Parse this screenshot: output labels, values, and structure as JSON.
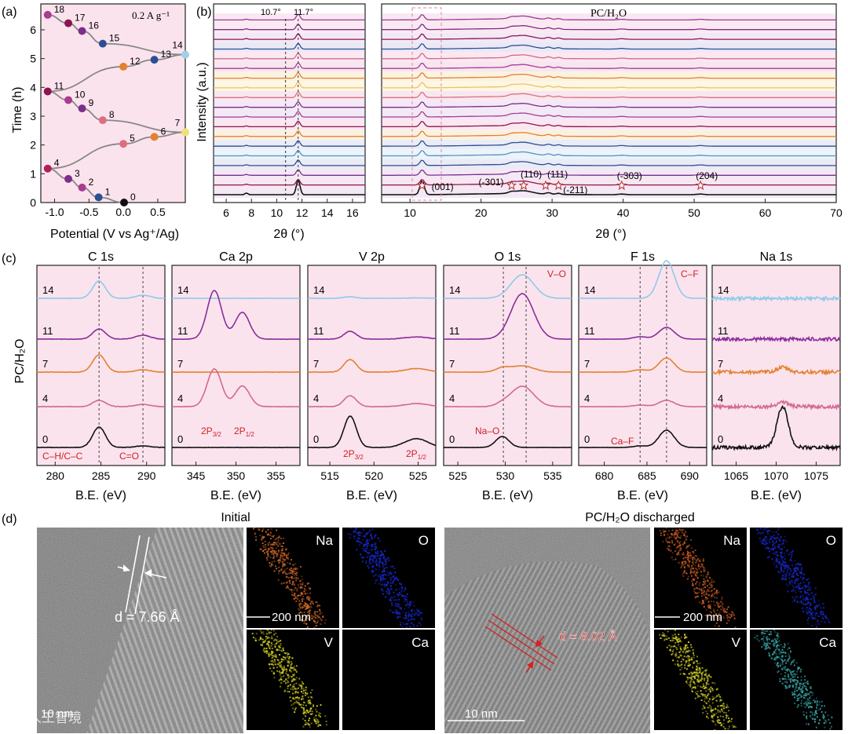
{
  "panel_letters": {
    "a": "(a)",
    "b": "(b)",
    "c": "(c)",
    "d": "(d)"
  },
  "colors": {
    "pink_bg": "#fbe3ee",
    "state_seq": [
      "#111111",
      "#2a4f94",
      "#a63d8f",
      "#7a2f8a",
      "#b01f5a",
      "#dc6f7f",
      "#e3812f",
      "#f0e07a",
      "#dc6f7f",
      "#7a2f8a",
      "#a63d8f",
      "#8a1650",
      "#e3812f",
      "#2a4f94",
      "#9fd0e6",
      "#2a4f94",
      "#7a2f8a",
      "#8a1650",
      "#a63d8f"
    ],
    "xps": {
      "s14": "#8ecbe8",
      "s11": "#8a2d9a",
      "s7": "#e3812f",
      "s4": "#d06a8f",
      "s0": "#111111"
    },
    "annotation_red": "#cc2222"
  },
  "chart_data": [
    {
      "id": "a",
      "type": "line",
      "title": "",
      "annotation": "0.2 A g⁻¹",
      "xlabel": "Potential (V vs Ag⁺/Ag)",
      "ylabel": "Time (h)",
      "xlim": [
        -1.2,
        0.9
      ],
      "ylim": [
        0,
        6.9
      ],
      "xticks": [
        "-1.0",
        "-0.5",
        "0.0",
        "0.5"
      ],
      "xtick_values": [
        -1.0,
        -0.5,
        0.0,
        0.5
      ],
      "yticks": [
        "0",
        "1",
        "2",
        "3",
        "4",
        "5",
        "6"
      ],
      "ytick_values": [
        0,
        1,
        2,
        3,
        4,
        5,
        6
      ],
      "points": [
        {
          "label": "0",
          "x": 0.01,
          "y": 0.0
        },
        {
          "label": "1",
          "x": -0.36,
          "y": 0.18
        },
        {
          "label": "2",
          "x": -0.6,
          "y": 0.52
        },
        {
          "label": "3",
          "x": -0.8,
          "y": 0.82
        },
        {
          "label": "4",
          "x": -1.1,
          "y": 1.18
        },
        {
          "label": "5",
          "x": 0.0,
          "y": 2.04
        },
        {
          "label": "6",
          "x": 0.45,
          "y": 2.28
        },
        {
          "label": "7",
          "x": 0.9,
          "y": 2.44
        },
        {
          "label": "8",
          "x": -0.3,
          "y": 2.86
        },
        {
          "label": "9",
          "x": -0.6,
          "y": 3.27
        },
        {
          "label": "10",
          "x": -0.8,
          "y": 3.56
        },
        {
          "label": "11",
          "x": -1.1,
          "y": 3.86
        },
        {
          "label": "12",
          "x": 0.0,
          "y": 4.72
        },
        {
          "label": "13",
          "x": 0.45,
          "y": 4.96
        },
        {
          "label": "14",
          "x": 0.9,
          "y": 5.14
        },
        {
          "label": "15",
          "x": -0.3,
          "y": 5.52
        },
        {
          "label": "16",
          "x": -0.6,
          "y": 5.96
        },
        {
          "label": "17",
          "x": -0.8,
          "y": 6.23
        },
        {
          "label": "18",
          "x": -1.1,
          "y": 6.52
        }
      ]
    },
    {
      "id": "b_left",
      "type": "line",
      "title": "",
      "xlabel": "2θ (°)",
      "ylabel": "Intensity (a.u.)",
      "xlim": [
        5,
        17
      ],
      "xticks": [
        "6",
        "8",
        "10",
        "12",
        "14",
        "16"
      ],
      "xtick_values": [
        6,
        8,
        10,
        12,
        14,
        16
      ],
      "n_curves": 19,
      "peak_positions": [
        10.7,
        11.7
      ],
      "guide_labels": [
        "10.7°",
        "11.7°"
      ]
    },
    {
      "id": "b_right",
      "type": "line",
      "title": "PC/H₂O",
      "xlabel": "2θ (°)",
      "ylabel": "",
      "xlim": [
        6,
        70
      ],
      "xticks": [
        "10",
        "20",
        "30",
        "40",
        "50",
        "60",
        "70"
      ],
      "xtick_values": [
        10,
        20,
        30,
        40,
        50,
        60,
        70
      ],
      "n_curves": 19,
      "reflections": [
        {
          "label": "(001)",
          "x": 11.7
        },
        {
          "label": "(-301)",
          "x": 24.3
        },
        {
          "label": "(110)",
          "x": 26.0
        },
        {
          "label": "(111)",
          "x": 29.1
        },
        {
          "label": "(-211)",
          "x": 30.9
        },
        {
          "label": "(-303)",
          "x": 39.8
        },
        {
          "label": "(204)",
          "x": 50.9
        }
      ]
    },
    {
      "id": "c",
      "type": "line",
      "xlabel": "B.E. (eV)",
      "ylabel": "PC/H₂O",
      "curve_states": [
        "14",
        "11",
        "7",
        "4",
        "0"
      ],
      "panels": [
        {
          "title": "C 1s",
          "xlim": [
            278,
            292
          ],
          "xticks": [
            "280",
            "285",
            "290"
          ],
          "xtick_values": [
            280,
            285,
            290
          ],
          "guides": [
            284.8,
            289.6
          ],
          "annotations": [
            "C–H/C–C",
            "C=O"
          ]
        },
        {
          "title": "Ca 2p",
          "xlim": [
            342,
            358
          ],
          "xticks": [
            "345",
            "350",
            "355"
          ],
          "xtick_values": [
            345,
            350,
            355
          ],
          "guides": [],
          "annotations": [
            "2P3/2",
            "2P1/2"
          ]
        },
        {
          "title": "V 2p",
          "xlim": [
            512.5,
            527
          ],
          "xticks": [
            "515",
            "520",
            "525"
          ],
          "xtick_values": [
            515,
            520,
            525
          ],
          "guides": [],
          "annotations": [
            "2P3/2",
            "2P1/2"
          ]
        },
        {
          "title": "O 1s",
          "xlim": [
            523.5,
            537
          ],
          "xticks": [
            "525",
            "530",
            "535"
          ],
          "xtick_values": [
            525,
            530,
            535
          ],
          "guides": [
            529.8,
            532.2
          ],
          "annotations": [
            "Na–O",
            "V–O"
          ]
        },
        {
          "title": "F 1s",
          "xlim": [
            677,
            692
          ],
          "xticks": [
            "680",
            "685",
            "690"
          ],
          "xtick_values": [
            680,
            685,
            690
          ],
          "guides": [
            684.2,
            687.3
          ],
          "annotations": [
            "Ca–F",
            "C–F"
          ]
        },
        {
          "title": "Na 1s",
          "xlim": [
            1062,
            1078
          ],
          "xticks": [
            "1065",
            "1070",
            "1075"
          ],
          "xtick_values": [
            1065,
            1070,
            1075
          ],
          "guides": [],
          "annotations": []
        }
      ]
    }
  ],
  "panel_d": {
    "left": {
      "title": "Initial",
      "d_label": "d = 7.66 Å",
      "scale_tem": "10 nm",
      "scale_map": "200 nm",
      "maps": [
        {
          "element": "Na",
          "color": "#d26a2a"
        },
        {
          "element": "O",
          "color": "#1a2ad8"
        },
        {
          "element": "V",
          "color": "#d8d428"
        },
        {
          "element": "Ca",
          "color": "#000000"
        }
      ]
    },
    "right": {
      "title": "PC/H₂O discharged",
      "d_label": "d = 8.02 Å",
      "scale_tem": "10 nm",
      "scale_map": "200 nm",
      "maps": [
        {
          "element": "Na",
          "color": "#c85a24"
        },
        {
          "element": "O",
          "color": "#1a2ad8"
        },
        {
          "element": "V",
          "color": "#d8d428"
        },
        {
          "element": "Ca",
          "color": "#3aa5a8"
        }
      ]
    }
  },
  "watermark": "人工智境"
}
